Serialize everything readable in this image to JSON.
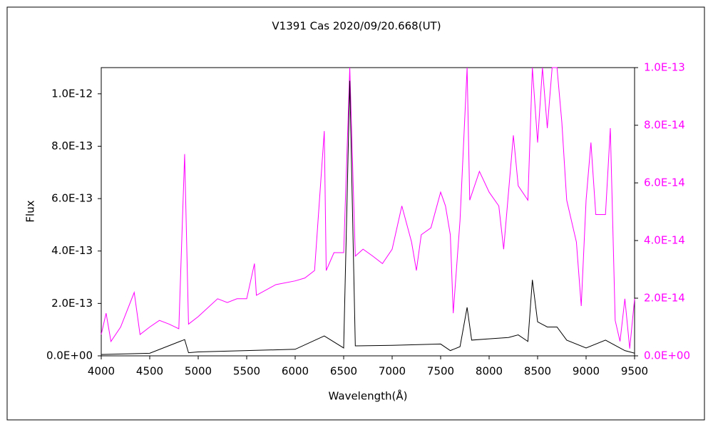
{
  "chart_data": {
    "type": "line",
    "title": "V1391 Cas   2020/09/20.668(UT)",
    "xlabel": "Wavelength(Å)",
    "ylabel": "Flux",
    "xlim": [
      4000,
      9500
    ],
    "xticks": [
      4000,
      4500,
      5000,
      5500,
      6000,
      6500,
      7000,
      7500,
      8000,
      8500,
      9000,
      9500
    ],
    "ylim": [
      0,
      1.1e-12
    ],
    "yticks": [
      {
        "value": 0,
        "label": "0.0E+00"
      },
      {
        "value": 2e-13,
        "label": "2.0E-13"
      },
      {
        "value": 4e-13,
        "label": "4.0E-13"
      },
      {
        "value": 6e-13,
        "label": "6.0E-13"
      },
      {
        "value": 8e-13,
        "label": "8.0E-13"
      },
      {
        "value": 1e-12,
        "label": "1.0E-12"
      }
    ],
    "y2lim": [
      0,
      1e-13
    ],
    "y2ticks": [
      {
        "value": 0,
        "label": "0.0E+00"
      },
      {
        "value": 2e-14,
        "label": "2.0E-14"
      },
      {
        "value": 4e-14,
        "label": "4.0E-14"
      },
      {
        "value": 6e-14,
        "label": "6.0E-14"
      },
      {
        "value": 8e-14,
        "label": "8.0E-14"
      },
      {
        "value": 1e-13,
        "label": "1.0E-13"
      }
    ],
    "grid": false,
    "series": [
      {
        "color": "#000000",
        "axis": "y",
        "x": [
          4000,
          4500,
          4860,
          4900,
          5000,
          5500,
          6000,
          6300,
          6500,
          6563,
          6620,
          7000,
          7500,
          7600,
          7700,
          7773,
          7820,
          8000,
          8200,
          8300,
          8400,
          8446,
          8500,
          8600,
          8700,
          8800,
          9000,
          9200,
          9300,
          9400,
          9500
        ],
        "values": [
          5e-15,
          1e-14,
          6.2e-14,
          1.2e-14,
          1.5e-14,
          2e-14,
          2.5e-14,
          7.6e-14,
          3e-14,
          1.05e-12,
          3.8e-14,
          4e-14,
          4.5e-14,
          2e-14,
          3.5e-14,
          1.85e-13,
          6e-14,
          6.5e-14,
          7e-14,
          8e-14,
          5.5e-14,
          2.9e-13,
          1.3e-13,
          1.1e-13,
          1.1e-13,
          6e-14,
          3e-14,
          6e-14,
          4e-14,
          2e-14,
          1e-14
        ]
      },
      {
        "color": "#ff00ff",
        "axis": "y2",
        "x": [
          4000,
          4050,
          4100,
          4200,
          4340,
          4400,
          4500,
          4600,
          4700,
          4800,
          4860,
          4900,
          5000,
          5200,
          5300,
          5400,
          5500,
          5580,
          5600,
          5800,
          6000,
          6100,
          6200,
          6300,
          6320,
          6400,
          6500,
          6563,
          6620,
          6700,
          6800,
          6900,
          7000,
          7100,
          7200,
          7250,
          7300,
          7400,
          7500,
          7550,
          7600,
          7630,
          7700,
          7773,
          7800,
          7900,
          8000,
          8100,
          8150,
          8250,
          8300,
          8400,
          8446,
          8500,
          8550,
          8600,
          8650,
          8700,
          8750,
          8800,
          8900,
          8950,
          9000,
          9050,
          9100,
          9200,
          9250,
          9300,
          9350,
          9400,
          9450,
          9500
        ],
        "values": [
          7.4e-15,
          1.48e-14,
          5e-15,
          1e-14,
          2.2e-14,
          7.4e-15,
          1e-14,
          1.23e-14,
          1.1e-14,
          9.4e-15,
          7e-14,
          1.1e-14,
          1.36e-14,
          1.98e-14,
          1.85e-14,
          1.98e-14,
          1.98e-14,
          3.2e-14,
          2.1e-14,
          2.47e-14,
          2.6e-14,
          2.7e-14,
          2.96e-14,
          7.8e-14,
          2.96e-14,
          3.58e-14,
          3.58e-14,
          1e-13,
          3.46e-14,
          3.7e-14,
          3.46e-14,
          3.2e-14,
          3.7e-14,
          5.2e-14,
          3.95e-14,
          2.96e-14,
          4.2e-14,
          4.44e-14,
          5.68e-14,
          5.2e-14,
          4.2e-14,
          1.48e-14,
          4.7e-14,
          1e-13,
          5.4e-14,
          6.4e-14,
          5.68e-14,
          5.2e-14,
          3.7e-14,
          7.65e-14,
          5.9e-14,
          5.4e-14,
          1e-13,
          7.4e-14,
          1e-13,
          7.9e-14,
          1e-13,
          1e-13,
          8.1e-14,
          5.4e-14,
          3.95e-14,
          1.73e-14,
          5.4e-14,
          7.4e-14,
          4.9e-14,
          4.9e-14,
          7.9e-14,
          1.23e-14,
          5e-15,
          1.98e-14,
          2.5e-15,
          1.98e-14
        ]
      }
    ]
  }
}
